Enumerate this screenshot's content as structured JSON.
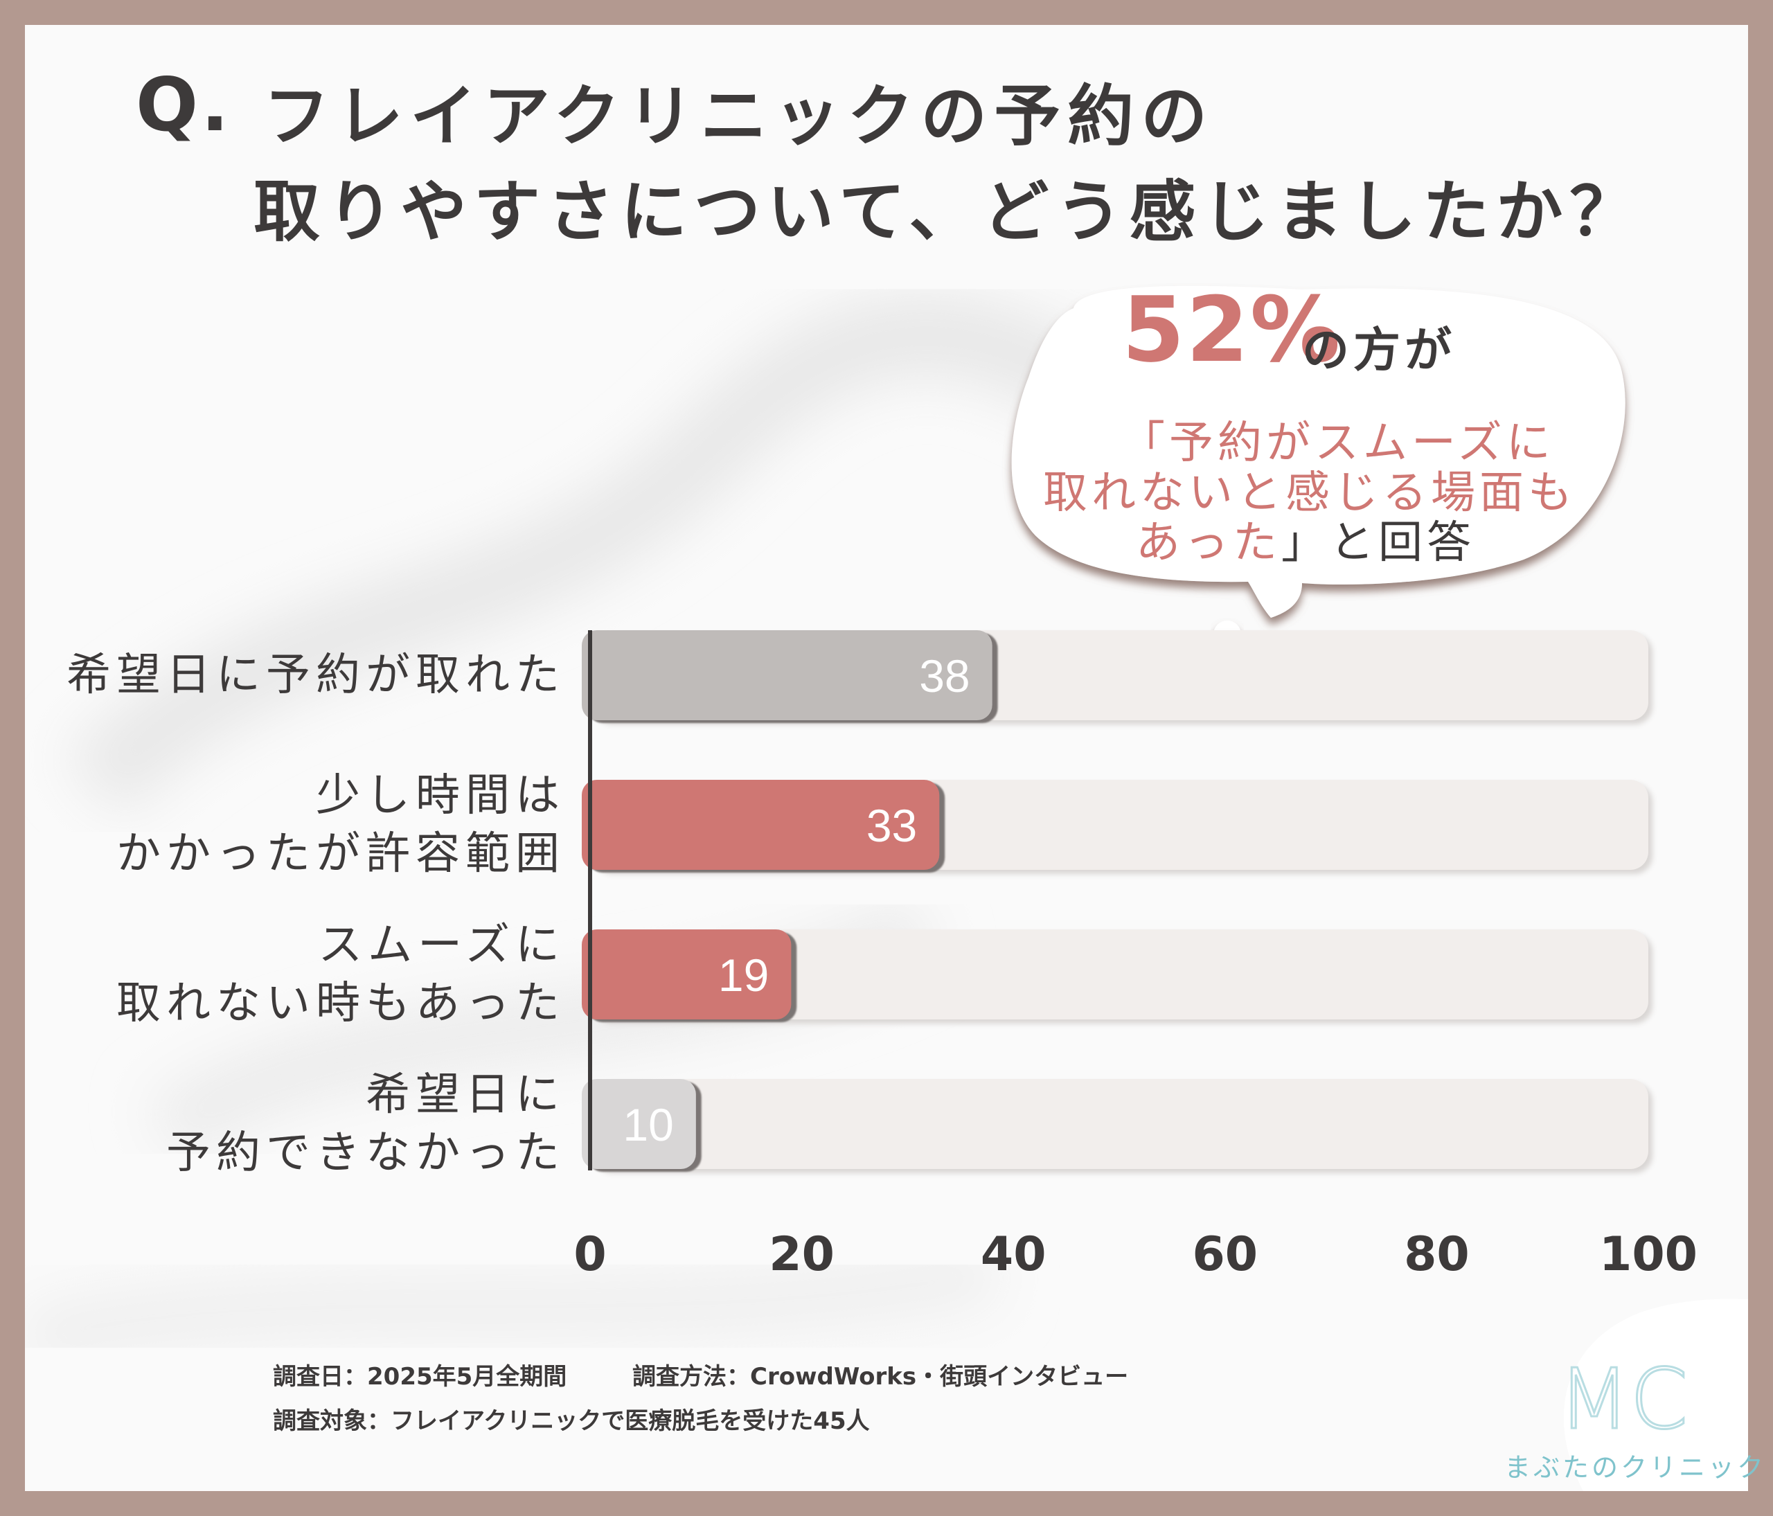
{
  "title": {
    "q": "Q.",
    "line1": "フレイアクリニックの予約の",
    "line2": "取りやすさについて、どう感じましたか？"
  },
  "callout": {
    "percent": "52%",
    "suffix": "の方が",
    "line1": "「予約がスムーズに",
    "line2": "取れないと感じる場面も",
    "line3": "あった",
    "line3_tail": "」と回答"
  },
  "chart_data": {
    "type": "bar",
    "orientation": "horizontal",
    "categories": [
      [
        "希望日に予約が取れた"
      ],
      [
        "少し時間は",
        "かかったが許容範囲"
      ],
      [
        "スムーズに",
        "取れない時もあった"
      ],
      [
        "希望日に",
        "予約できなかった"
      ]
    ],
    "values": [
      38,
      33,
      19,
      10
    ],
    "value_labels": [
      "38",
      "33",
      "19",
      "10"
    ],
    "bar_colors": [
      "#bfbbb9",
      "#cf7773",
      "#cf7773",
      "#d8d6d6"
    ],
    "xlim": [
      0,
      100
    ],
    "xticks": [
      "0",
      "20",
      "40",
      "60",
      "80",
      "100"
    ],
    "grid": false,
    "track_color": "#f2eeec"
  },
  "footer": {
    "date": "調査日：2025年5月全期間",
    "method": "調査方法：CrowdWorks・街頭インタビュー",
    "target": "調査対象：フレイアクリニックで医療脱毛を受けた45人"
  },
  "logo": {
    "mark": "MC",
    "name": "まぶたのクリニック",
    "color": "#7fc3cc"
  },
  "colors": {
    "frame": "#b39990",
    "text": "#3d3a3a",
    "accent": "#cf7773"
  }
}
